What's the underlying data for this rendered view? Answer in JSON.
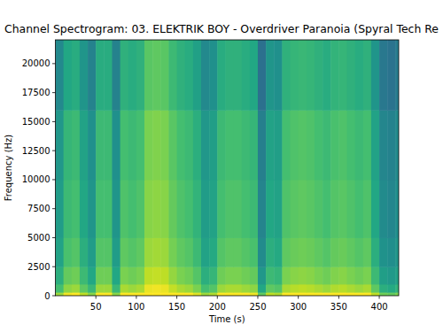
{
  "chart_data": {
    "type": "heatmap",
    "title": "Channel Spectrogram: 03. ELEKTRIK BOY - Overdriver Paranoia (Spyral Tech Re",
    "x_label": "Time (s)",
    "y_label": "Frequency (Hz)",
    "xlim": [
      0,
      424
    ],
    "ylim": [
      0,
      22050
    ],
    "xticks": [
      50,
      100,
      150,
      200,
      250,
      300,
      350,
      400
    ],
    "yticks": [
      0,
      2500,
      5000,
      7500,
      10000,
      12500,
      15000,
      17500,
      20000
    ],
    "time_edges": [
      0,
      10,
      20,
      30,
      40,
      50,
      60,
      70,
      80,
      90,
      100,
      110,
      120,
      130,
      140,
      150,
      160,
      170,
      180,
      190,
      200,
      210,
      220,
      230,
      240,
      250,
      260,
      270,
      280,
      290,
      300,
      310,
      320,
      330,
      340,
      350,
      360,
      370,
      380,
      390,
      400,
      410,
      420,
      424
    ],
    "freq_edges": [
      0,
      300,
      1000,
      2500,
      5000,
      10000,
      16000,
      22050
    ],
    "clim": [
      -130,
      -30
    ],
    "cells": [
      [
        -45,
        -32,
        -30,
        -40,
        -48,
        -30,
        -30,
        -48,
        -28,
        -30,
        -28,
        -20,
        -20,
        -20,
        -24,
        -28,
        -30,
        -35,
        -45,
        -42,
        -30,
        -28,
        -28,
        -30,
        -32,
        -55,
        -40,
        -42,
        -28,
        -26,
        -25,
        -26,
        -28,
        -30,
        -27,
        -26,
        -28,
        -30,
        -28,
        -40,
        -52,
        -54,
        -50
      ],
      [
        -60,
        -47,
        -45,
        -55,
        -63,
        -45,
        -45,
        -63,
        -43,
        -45,
        -43,
        -33,
        -32,
        -33,
        -39,
        -43,
        -45,
        -50,
        -60,
        -57,
        -45,
        -43,
        -43,
        -45,
        -47,
        -70,
        -55,
        -57,
        -43,
        -41,
        -40,
        -41,
        -43,
        -45,
        -42,
        -41,
        -43,
        -45,
        -43,
        -55,
        -67,
        -69,
        -65
      ],
      [
        -67,
        -54,
        -52,
        -62,
        -70,
        -52,
        -52,
        -70,
        -50,
        -52,
        -50,
        -40,
        -39,
        -40,
        -46,
        -50,
        -52,
        -57,
        -67,
        -64,
        -52,
        -50,
        -50,
        -52,
        -54,
        -77,
        -62,
        -64,
        -50,
        -48,
        -47,
        -48,
        -50,
        -52,
        -49,
        -48,
        -50,
        -52,
        -50,
        -62,
        -74,
        -76,
        -72
      ],
      [
        -72,
        -59,
        -57,
        -67,
        -75,
        -57,
        -57,
        -75,
        -55,
        -57,
        -55,
        -45,
        -44,
        -45,
        -51,
        -55,
        -57,
        -62,
        -72,
        -69,
        -57,
        -55,
        -55,
        -57,
        -59,
        -82,
        -67,
        -69,
        -55,
        -53,
        -52,
        -53,
        -55,
        -57,
        -54,
        -53,
        -55,
        -57,
        -55,
        -67,
        -79,
        -81,
        -77
      ],
      [
        -75,
        -62,
        -60,
        -70,
        -78,
        -60,
        -60,
        -78,
        -58,
        -60,
        -58,
        -48,
        -47,
        -48,
        -54,
        -58,
        -60,
        -65,
        -75,
        -72,
        -60,
        -58,
        -58,
        -60,
        -62,
        -85,
        -70,
        -72,
        -58,
        -56,
        -55,
        -56,
        -58,
        -60,
        -57,
        -56,
        -58,
        -60,
        -58,
        -70,
        -82,
        -84,
        -80
      ],
      [
        -77,
        -64,
        -62,
        -72,
        -80,
        -62,
        -62,
        -80,
        -60,
        -62,
        -60,
        -50,
        -49,
        -50,
        -56,
        -60,
        -62,
        -67,
        -77,
        -74,
        -62,
        -60,
        -60,
        -62,
        -64,
        -87,
        -72,
        -74,
        -60,
        -58,
        -57,
        -58,
        -60,
        -62,
        -59,
        -58,
        -60,
        -62,
        -60,
        -72,
        -84,
        -86,
        -82
      ],
      [
        -83,
        -70,
        -68,
        -78,
        -86,
        -68,
        -68,
        -86,
        -66,
        -68,
        -66,
        -56,
        -55,
        -56,
        -62,
        -66,
        -68,
        -73,
        -83,
        -80,
        -68,
        -66,
        -66,
        -68,
        -70,
        -93,
        -78,
        -80,
        -66,
        -64,
        -63,
        -64,
        -66,
        -68,
        -65,
        -64,
        -66,
        -68,
        -66,
        -78,
        -90,
        -92,
        -88
      ]
    ]
  }
}
